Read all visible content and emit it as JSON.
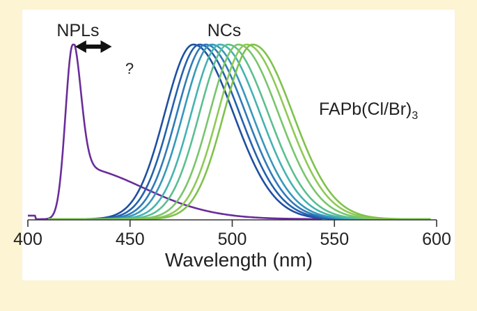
{
  "chart_data": {
    "type": "line",
    "xlabel": "Wavelength (nm)",
    "ylabel": "",
    "xlim": [
      400,
      600
    ],
    "ylim": [
      0,
      1
    ],
    "x_ticks": [
      "400",
      "450",
      "500",
      "550",
      "600"
    ],
    "x_tick_values": [
      400,
      450,
      500,
      550,
      600
    ],
    "grid": false,
    "annotations": {
      "npl_label": "NPLs",
      "nc_label": "NCs",
      "question": "?",
      "formula": "FAPb(Cl/Br)",
      "formula_subscript": "3"
    },
    "arrow": {
      "from_x": 418,
      "to_x": 438,
      "style": "double-headed"
    },
    "series": [
      {
        "group": "NPLs",
        "color": "#6a2c9a",
        "peak": 422,
        "x_start": 400,
        "x_end": 544
      },
      {
        "group": "NCs",
        "color": "#1f4fa0",
        "peak": 481,
        "x_start": 410,
        "x_end": 597
      },
      {
        "group": "NCs",
        "color": "#2460ad",
        "peak": 484,
        "x_start": 410,
        "x_end": 597
      },
      {
        "group": "NCs",
        "color": "#2f7ab8",
        "peak": 487,
        "x_start": 410,
        "x_end": 597
      },
      {
        "group": "NCs",
        "color": "#3798b9",
        "peak": 490,
        "x_start": 410,
        "x_end": 597
      },
      {
        "group": "NCs",
        "color": "#44b3b0",
        "peak": 494,
        "x_start": 410,
        "x_end": 597
      },
      {
        "group": "NCs",
        "color": "#5bbf8f",
        "peak": 498,
        "x_start": 410,
        "x_end": 597
      },
      {
        "group": "NCs",
        "color": "#79c56b",
        "peak": 503,
        "x_start": 410,
        "x_end": 597
      },
      {
        "group": "NCs",
        "color": "#8ec955",
        "peak": 507,
        "x_start": 410,
        "x_end": 597
      },
      {
        "group": "NCs",
        "color": "#7ec24c",
        "peak": 510,
        "x_start": 410,
        "x_end": 597
      }
    ]
  }
}
